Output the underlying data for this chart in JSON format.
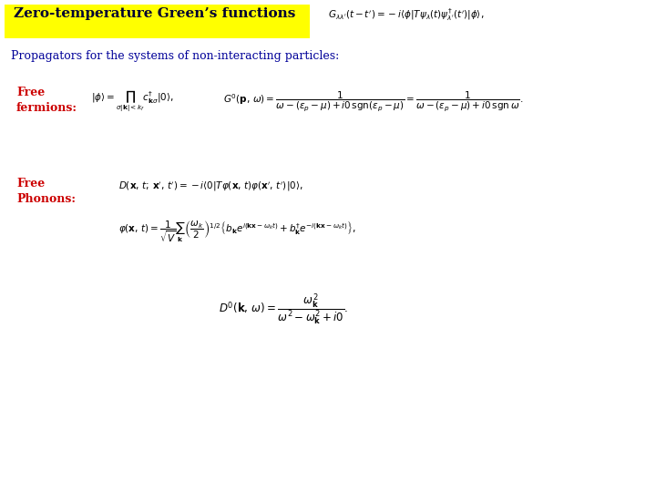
{
  "title": "Zero-temperature Green’s functions",
  "title_bg": "#ffff00",
  "title_color": "#000033",
  "title_fontsize": 11,
  "subtitle": "Propagators for the systems of non-interacting particles:",
  "subtitle_color": "#000099",
  "subtitle_fontsize": 9,
  "label_free_fermions": "Free\nfermions:",
  "label_free_phonons": "Free\nPhonons:",
  "label_color": "#cc0000",
  "label_fontsize": 9,
  "header_eq": "$G_{\\lambda\\lambda^{\\prime}}(t - t^{\\prime}) = -i\\langle\\phi|T\\psi_{\\lambda}(t)\\psi^{\\dagger}_{\\lambda^{\\prime}}(t^{\\prime})|\\phi\\rangle,$",
  "eq_fermion_state": "$|\\phi\\rangle = \\prod_{\\sigma|\\mathbf{k}|<k_f} c^{\\dagger}_{\\mathbf{k}\\sigma}|0\\rangle,$",
  "eq_fermion_G": "$G^0(\\mathbf{p},\\,\\omega) = \\dfrac{1}{\\omega - (\\epsilon_p - \\mu) + i0\\,\\mathrm{sgn}(\\epsilon_p - \\mu)} = \\dfrac{1}{\\omega - (\\epsilon_p - \\mu) + i0\\,\\mathrm{sgn}\\,\\omega}.$",
  "eq_phonon_D": "$D(\\mathbf{x},\\,t;\\,\\mathbf{x}^{\\prime},\\,t^{\\prime}) = -i\\langle 0|T\\varphi(\\mathbf{x},\\,t)\\varphi(\\mathbf{x}^{\\prime},\\,t^{\\prime})|0\\rangle,$",
  "eq_phonon_phi": "$\\varphi(\\mathbf{x},\\,t) = \\dfrac{1}{\\sqrt{V}}\\sum_{\\mathbf{k}}\\left(\\dfrac{\\omega_k}{2}\\right)^{1/2}\\left\\{b_{\\mathbf{k}}e^{i(\\mathbf{kx}-\\omega_k t)} + b^{\\dagger}_{\\mathbf{k}}e^{-i(\\mathbf{kx}-\\omega_k t)}\\right\\},$",
  "eq_phonon_D0": "$D^0(\\mathbf{k},\\,\\omega) = \\dfrac{\\omega_{\\mathbf{k}}^2}{\\omega^2 - \\omega_{\\mathbf{k}}^2 + i0}.$",
  "bg_color": "#ffffff",
  "text_color": "#000000",
  "eq_fontsize": 7.5,
  "header_eq_fontsize": 7.5
}
